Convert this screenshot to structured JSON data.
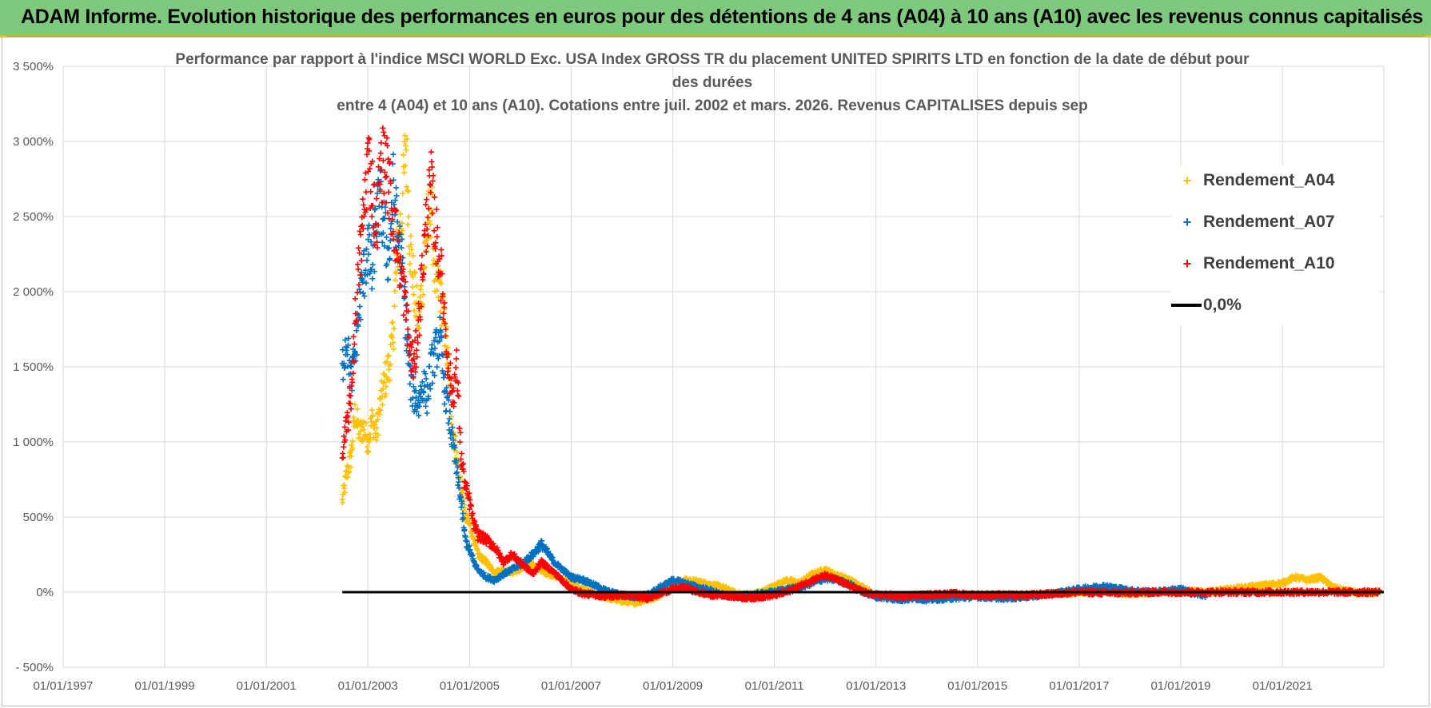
{
  "banner": {
    "title": "ADAM Informe. Evolution historique des performances en euros pour des détentions de 4 ans (A04) à 10 ans (A10) avec les revenus connus capitalisés"
  },
  "chart_data": {
    "type": "scatter",
    "title_lines": [
      "Performance par rapport à l'indice MSCI WORLD Exc. USA Index GROSS TR  du placement UNITED SPIRITS LTD en fonction de la date de début pour",
      "des durées",
      "entre 4 (A04) et 10 ans (A10). Cotations entre juil. 2002 et mars. 2026. Revenus CAPITALISES depuis sep"
    ],
    "xlabel": "",
    "ylabel": "",
    "x_range": [
      "1997-01-01",
      "2022-12-31"
    ],
    "x_ticks": [
      "01/01/1997",
      "01/01/1999",
      "01/01/2001",
      "01/01/2003",
      "01/01/2005",
      "01/01/2007",
      "01/01/2009",
      "01/01/2011",
      "01/01/2013",
      "01/01/2015",
      "01/01/2017",
      "01/01/2019",
      "01/01/2021"
    ],
    "ylim": [
      -500,
      3500
    ],
    "y_ticks": [
      -500,
      0,
      500,
      1000,
      1500,
      2000,
      2500,
      3000,
      3500
    ],
    "y_tick_labels": [
      "- 500%",
      "0%",
      "500%",
      "1 000%",
      "1 500%",
      "2 000%",
      "2 500%",
      "3 000%",
      "3 500%"
    ],
    "grid": true,
    "legend_position": "top-right",
    "reference_line": {
      "name": "0,0%",
      "value": 0,
      "from": "2002-07-01",
      "to": "2022-12-31",
      "color": "#000000"
    },
    "series": [
      {
        "name": "Rendement_A04",
        "color": "#ffc000",
        "marker": "+",
        "points": [
          [
            "2002-07-01",
            600
          ],
          [
            "2002-08-01",
            780
          ],
          [
            "2002-09-01",
            900
          ],
          [
            "2002-10-01",
            1200
          ],
          [
            "2002-11-01",
            1050
          ],
          [
            "2002-12-01",
            1100
          ],
          [
            "2003-01-01",
            1000
          ],
          [
            "2003-02-01",
            1150
          ],
          [
            "2003-03-01",
            1050
          ],
          [
            "2003-04-01",
            1250
          ],
          [
            "2003-05-01",
            1400
          ],
          [
            "2003-06-01",
            1500
          ],
          [
            "2003-07-01",
            1700
          ],
          [
            "2003-08-01",
            2300
          ],
          [
            "2003-09-01",
            2500
          ],
          [
            "2003-10-01",
            3000
          ],
          [
            "2003-11-01",
            2300
          ],
          [
            "2003-12-01",
            2000
          ],
          [
            "2004-01-01",
            1800
          ],
          [
            "2004-02-01",
            2100
          ],
          [
            "2004-03-01",
            2400
          ],
          [
            "2004-04-01",
            2600
          ],
          [
            "2004-05-01",
            2000
          ],
          [
            "2004-06-01",
            2050
          ],
          [
            "2004-07-01",
            1800
          ],
          [
            "2004-08-01",
            1500
          ],
          [
            "2004-09-01",
            1100
          ],
          [
            "2004-10-01",
            900
          ],
          [
            "2004-11-01",
            700
          ],
          [
            "2004-12-01",
            500
          ],
          [
            "2005-01-01",
            450
          ],
          [
            "2005-02-01",
            350
          ],
          [
            "2005-03-01",
            250
          ],
          [
            "2005-05-01",
            200
          ],
          [
            "2005-07-01",
            130
          ],
          [
            "2005-09-01",
            150
          ],
          [
            "2005-11-01",
            130
          ],
          [
            "2006-01-01",
            150
          ],
          [
            "2006-04-01",
            180
          ],
          [
            "2006-07-01",
            130
          ],
          [
            "2006-10-01",
            100
          ],
          [
            "2007-01-01",
            50
          ],
          [
            "2007-04-01",
            20
          ],
          [
            "2007-07-01",
            -20
          ],
          [
            "2007-10-01",
            -40
          ],
          [
            "2008-01-01",
            -60
          ],
          [
            "2008-04-01",
            -70
          ],
          [
            "2008-07-01",
            -50
          ],
          [
            "2008-10-01",
            -20
          ],
          [
            "2009-01-01",
            50
          ],
          [
            "2009-04-01",
            80
          ],
          [
            "2009-07-01",
            70
          ],
          [
            "2009-10-01",
            50
          ],
          [
            "2010-01-01",
            30
          ],
          [
            "2010-04-01",
            -10
          ],
          [
            "2010-07-01",
            -20
          ],
          [
            "2010-10-01",
            0
          ],
          [
            "2011-01-01",
            40
          ],
          [
            "2011-04-01",
            80
          ],
          [
            "2011-07-01",
            60
          ],
          [
            "2011-10-01",
            120
          ],
          [
            "2012-01-01",
            150
          ],
          [
            "2012-04-01",
            110
          ],
          [
            "2012-07-01",
            80
          ],
          [
            "2012-10-01",
            30
          ],
          [
            "2013-01-01",
            -20
          ],
          [
            "2013-04-01",
            -30
          ],
          [
            "2013-07-01",
            -40
          ],
          [
            "2013-10-01",
            -30
          ],
          [
            "2014-01-01",
            -20
          ],
          [
            "2014-07-01",
            -30
          ],
          [
            "2015-01-01",
            -20
          ],
          [
            "2015-07-01",
            -30
          ],
          [
            "2016-01-01",
            -20
          ],
          [
            "2016-07-01",
            -10
          ],
          [
            "2017-01-01",
            0
          ],
          [
            "2017-07-01",
            10
          ],
          [
            "2018-01-01",
            -10
          ],
          [
            "2018-07-01",
            0
          ],
          [
            "2019-01-01",
            10
          ],
          [
            "2019-07-01",
            0
          ],
          [
            "2020-01-01",
            20
          ],
          [
            "2020-07-01",
            40
          ],
          [
            "2021-01-01",
            60
          ],
          [
            "2021-04-01",
            100
          ],
          [
            "2021-07-01",
            80
          ],
          [
            "2021-10-01",
            100
          ],
          [
            "2022-01-01",
            30
          ],
          [
            "2022-07-01",
            -10
          ],
          [
            "2022-12-01",
            0
          ]
        ]
      },
      {
        "name": "Rendement_A07",
        "color": "#0070c0",
        "marker": "+",
        "points": [
          [
            "2002-07-01",
            1500
          ],
          [
            "2002-08-01",
            1700
          ],
          [
            "2002-09-01",
            1400
          ],
          [
            "2002-10-01",
            1600
          ],
          [
            "2002-11-01",
            1900
          ],
          [
            "2002-12-01",
            2100
          ],
          [
            "2003-01-01",
            2300
          ],
          [
            "2003-02-01",
            2100
          ],
          [
            "2003-03-01",
            2500
          ],
          [
            "2003-04-01",
            2600
          ],
          [
            "2003-05-01",
            2400
          ],
          [
            "2003-06-01",
            2200
          ],
          [
            "2003-07-01",
            2700
          ],
          [
            "2003-08-01",
            2400
          ],
          [
            "2003-09-01",
            2200
          ],
          [
            "2003-10-01",
            1800
          ],
          [
            "2003-11-01",
            1400
          ],
          [
            "2003-12-01",
            1300
          ],
          [
            "2004-01-01",
            1250
          ],
          [
            "2004-02-01",
            1400
          ],
          [
            "2004-03-01",
            1300
          ],
          [
            "2004-04-01",
            1500
          ],
          [
            "2004-05-01",
            1600
          ],
          [
            "2004-06-01",
            1700
          ],
          [
            "2004-07-01",
            1400
          ],
          [
            "2004-08-01",
            1200
          ],
          [
            "2004-09-01",
            1000
          ],
          [
            "2004-10-01",
            800
          ],
          [
            "2004-11-01",
            600
          ],
          [
            "2004-12-01",
            350
          ],
          [
            "2005-01-01",
            280
          ],
          [
            "2005-02-01",
            200
          ],
          [
            "2005-03-01",
            150
          ],
          [
            "2005-05-01",
            100
          ],
          [
            "2005-07-01",
            80
          ],
          [
            "2005-09-01",
            120
          ],
          [
            "2005-11-01",
            150
          ],
          [
            "2006-01-01",
            180
          ],
          [
            "2006-04-01",
            250
          ],
          [
            "2006-06-01",
            320
          ],
          [
            "2006-09-01",
            200
          ],
          [
            "2007-01-01",
            100
          ],
          [
            "2007-04-01",
            80
          ],
          [
            "2007-07-01",
            40
          ],
          [
            "2007-10-01",
            0
          ],
          [
            "2008-01-01",
            -20
          ],
          [
            "2008-04-01",
            -30
          ],
          [
            "2008-07-01",
            -20
          ],
          [
            "2008-10-01",
            30
          ],
          [
            "2009-01-01",
            80
          ],
          [
            "2009-04-01",
            60
          ],
          [
            "2009-07-01",
            30
          ],
          [
            "2009-10-01",
            10
          ],
          [
            "2010-01-01",
            -20
          ],
          [
            "2010-04-01",
            -30
          ],
          [
            "2010-07-01",
            -20
          ],
          [
            "2010-10-01",
            -10
          ],
          [
            "2011-01-01",
            0
          ],
          [
            "2011-04-01",
            20
          ],
          [
            "2011-07-01",
            30
          ],
          [
            "2011-10-01",
            60
          ],
          [
            "2012-01-01",
            90
          ],
          [
            "2012-04-01",
            80
          ],
          [
            "2012-07-01",
            50
          ],
          [
            "2012-10-01",
            0
          ],
          [
            "2013-01-01",
            -30
          ],
          [
            "2013-04-01",
            -40
          ],
          [
            "2013-07-01",
            -50
          ],
          [
            "2013-10-01",
            -40
          ],
          [
            "2014-01-01",
            -50
          ],
          [
            "2014-07-01",
            -40
          ],
          [
            "2015-01-01",
            -30
          ],
          [
            "2015-07-01",
            -40
          ],
          [
            "2016-01-01",
            -30
          ],
          [
            "2016-07-01",
            -10
          ],
          [
            "2017-01-01",
            20
          ],
          [
            "2017-07-01",
            40
          ],
          [
            "2018-01-01",
            10
          ],
          [
            "2018-07-01",
            0
          ],
          [
            "2019-01-01",
            20
          ],
          [
            "2019-04-01",
            -10
          ],
          [
            "2019-07-01",
            -20
          ]
        ]
      },
      {
        "name": "Rendement_A10",
        "color": "#ff0000",
        "marker": "+",
        "points": [
          [
            "2002-07-01",
            900
          ],
          [
            "2002-08-01",
            1100
          ],
          [
            "2002-09-01",
            1300
          ],
          [
            "2002-10-01",
            1800
          ],
          [
            "2002-11-01",
            2200
          ],
          [
            "2002-12-01",
            2500
          ],
          [
            "2003-01-01",
            2900
          ],
          [
            "2003-02-01",
            2700
          ],
          [
            "2003-03-01",
            2400
          ],
          [
            "2003-04-01",
            2800
          ],
          [
            "2003-05-01",
            2900
          ],
          [
            "2003-06-01",
            2700
          ],
          [
            "2003-07-01",
            2500
          ],
          [
            "2003-08-01",
            2300
          ],
          [
            "2003-09-01",
            2100
          ],
          [
            "2003-10-01",
            1900
          ],
          [
            "2003-11-01",
            1600
          ],
          [
            "2003-12-01",
            1500
          ],
          [
            "2004-01-01",
            1800
          ],
          [
            "2004-02-01",
            2200
          ],
          [
            "2004-03-01",
            2500
          ],
          [
            "2004-04-01",
            2700
          ],
          [
            "2004-05-01",
            2400
          ],
          [
            "2004-06-01",
            2200
          ],
          [
            "2004-07-01",
            1900
          ],
          [
            "2004-08-01",
            1500
          ],
          [
            "2004-09-01",
            1300
          ],
          [
            "2004-10-01",
            1500
          ],
          [
            "2004-11-01",
            900
          ],
          [
            "2004-12-01",
            700
          ],
          [
            "2005-01-01",
            600
          ],
          [
            "2005-02-01",
            450
          ],
          [
            "2005-03-01",
            380
          ],
          [
            "2005-05-01",
            350
          ],
          [
            "2005-07-01",
            300
          ],
          [
            "2005-09-01",
            200
          ],
          [
            "2005-11-01",
            250
          ],
          [
            "2006-01-01",
            200
          ],
          [
            "2006-04-01",
            120
          ],
          [
            "2006-06-01",
            200
          ],
          [
            "2006-09-01",
            130
          ],
          [
            "2007-01-01",
            20
          ],
          [
            "2007-04-01",
            -10
          ],
          [
            "2007-07-01",
            -20
          ],
          [
            "2007-10-01",
            -30
          ],
          [
            "2008-01-01",
            -20
          ],
          [
            "2008-04-01",
            -30
          ],
          [
            "2008-07-01",
            -40
          ],
          [
            "2008-10-01",
            -10
          ],
          [
            "2009-01-01",
            20
          ],
          [
            "2009-04-01",
            30
          ],
          [
            "2009-07-01",
            0
          ],
          [
            "2009-10-01",
            -20
          ],
          [
            "2010-01-01",
            -20
          ],
          [
            "2010-04-01",
            -30
          ],
          [
            "2010-07-01",
            -40
          ],
          [
            "2010-10-01",
            -30
          ],
          [
            "2011-01-01",
            -20
          ],
          [
            "2011-04-01",
            0
          ],
          [
            "2011-07-01",
            40
          ],
          [
            "2011-10-01",
            80
          ],
          [
            "2012-01-01",
            110
          ],
          [
            "2012-04-01",
            80
          ],
          [
            "2012-07-01",
            40
          ],
          [
            "2012-10-01",
            0
          ],
          [
            "2013-01-01",
            -20
          ],
          [
            "2013-04-01",
            -20
          ],
          [
            "2013-07-01",
            -30
          ],
          [
            "2013-10-01",
            -20
          ],
          [
            "2014-01-01",
            -20
          ],
          [
            "2014-07-01",
            -10
          ],
          [
            "2015-01-01",
            -20
          ],
          [
            "2015-07-01",
            -20
          ],
          [
            "2016-01-01",
            -20
          ],
          [
            "2016-07-01",
            -10
          ],
          [
            "2017-01-01",
            0
          ],
          [
            "2017-07-01",
            -5
          ],
          [
            "2018-01-01",
            -5
          ],
          [
            "2018-07-01",
            0
          ],
          [
            "2019-01-01",
            0
          ],
          [
            "2019-07-01",
            0
          ],
          [
            "2020-01-01",
            0
          ],
          [
            "2020-07-01",
            0
          ],
          [
            "2021-01-01",
            0
          ],
          [
            "2021-07-01",
            0
          ],
          [
            "2022-01-01",
            0
          ],
          [
            "2022-07-01",
            0
          ],
          [
            "2022-12-01",
            0
          ]
        ]
      }
    ]
  }
}
